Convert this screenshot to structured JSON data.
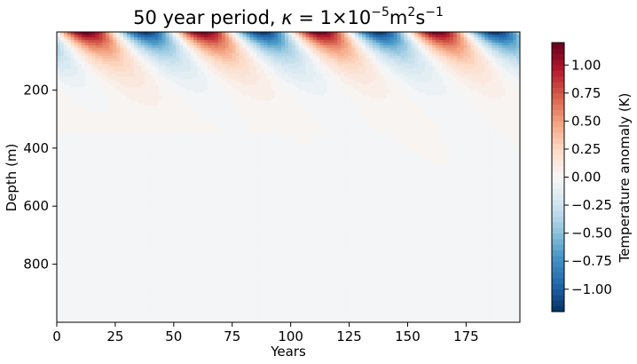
{
  "chart_data": {
    "type": "heatmap",
    "title_parts": {
      "lead": "50 year period, ",
      "kappa": "κ",
      "equals": " = 1×10",
      "exp1": "−5",
      "m": "m",
      "exp2": "2",
      "s": "s",
      "exp3": "−1"
    },
    "xlabel": "Years",
    "ylabel": "Depth (m)",
    "colorbar_label": "Temperature anomaly (K)",
    "xlim": [
      0,
      198
    ],
    "ylim": [
      1000,
      0
    ],
    "xticks": [
      0,
      25,
      50,
      75,
      100,
      125,
      150,
      175
    ],
    "yticks": [
      200,
      400,
      600,
      800
    ],
    "clim": [
      -1.2,
      1.2
    ],
    "cticks": [
      "−1.00",
      "−0.75",
      "−0.50",
      "−0.25",
      "0.00",
      "0.25",
      "0.50",
      "0.75",
      "1.00"
    ],
    "colormap": "RdBu_r",
    "model": {
      "period_years": 50,
      "amplitude": 1.2,
      "kappa": 1e-05,
      "description": "Periodic surface temperature forcing diffusing downward"
    }
  },
  "colors": {
    "background": "#ffffff",
    "cmap_stops": [
      "#053061",
      "#2166ac",
      "#4393c3",
      "#92c5de",
      "#d1e5f0",
      "#f7f7f7",
      "#fddbc7",
      "#f4a582",
      "#d6604d",
      "#b2182b",
      "#67001f"
    ]
  }
}
